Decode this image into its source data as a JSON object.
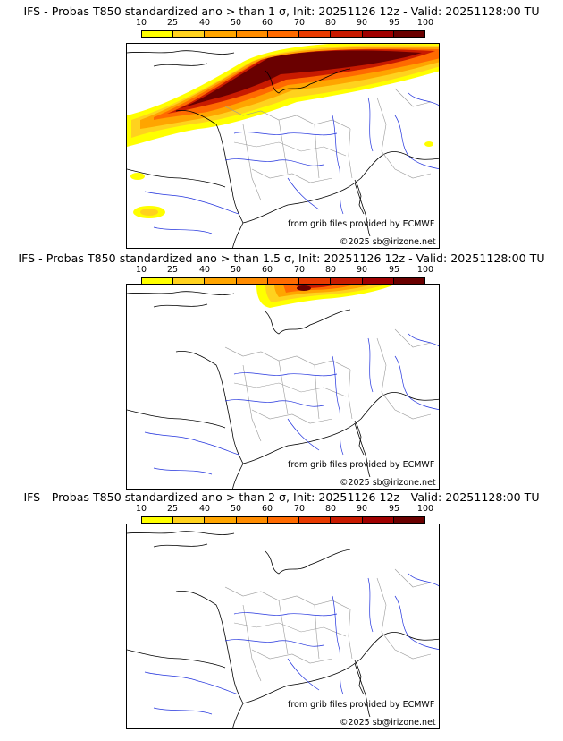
{
  "panels": [
    {
      "title": "IFS - Probas T850  standardized ano > than 1 σ, Init: 20251126 12z - Valid: 20251128:00 TU",
      "anomaly": "1 σ",
      "source": "from grib files provided by ECMWF",
      "copyright": "©2025 sb@irizone.net"
    },
    {
      "title": "IFS - Probas T850  standardized ano > than 1.5 σ, Init: 20251126 12z - Valid: 20251128:00 TU",
      "anomaly": "1.5 σ",
      "source": "from grib files provided by ECMWF",
      "copyright": "©2025 sb@irizone.net"
    },
    {
      "title": "IFS - Probas T850  standardized ano > than 2 σ, Init: 20251126 12z - Valid: 20251128:00 TU",
      "anomaly": "2 σ",
      "source": "from grib files provided by ECMWF",
      "copyright": "©2025 sb@irizone.net"
    }
  ],
  "colorbar": {
    "ticks": [
      "10",
      "25",
      "40",
      "50",
      "60",
      "70",
      "80",
      "90",
      "95",
      "100"
    ],
    "colors": [
      "#ffff00",
      "#ffd21e",
      "#ffa500",
      "#ff8c00",
      "#ff6a00",
      "#e83a00",
      "#c81a00",
      "#a00000",
      "#6a0000"
    ]
  }
}
